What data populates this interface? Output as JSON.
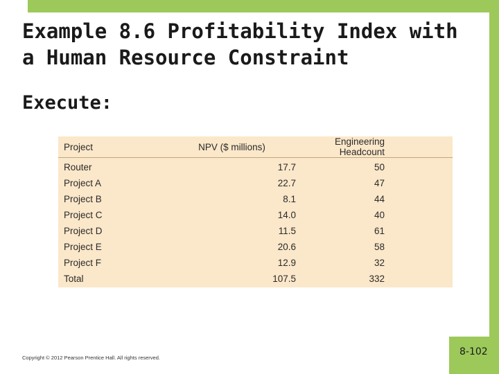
{
  "title": "Example 8.6 Profitability Index with a Human Resource Constraint",
  "subheading": "Execute:",
  "table": {
    "headers": {
      "project": "Project",
      "npv": "NPV ($ millions)",
      "headcount": "Engineering Headcount"
    },
    "rows": [
      {
        "project": "Router",
        "npv": "17.7",
        "headcount": "50"
      },
      {
        "project": "Project A",
        "npv": "22.7",
        "headcount": "47"
      },
      {
        "project": "Project B",
        "npv": "8.1",
        "headcount": "44"
      },
      {
        "project": "Project C",
        "npv": "14.0",
        "headcount": "40"
      },
      {
        "project": "Project D",
        "npv": "11.5",
        "headcount": "61"
      },
      {
        "project": "Project E",
        "npv": "20.6",
        "headcount": "58"
      },
      {
        "project": "Project F",
        "npv": "12.9",
        "headcount": "32"
      },
      {
        "project": "Total",
        "npv": "107.5",
        "headcount": "332"
      }
    ]
  },
  "footer": {
    "copyright": "Copyright © 2012 Pearson Prentice Hall. All rights reserved."
  },
  "page_number": "8-102",
  "colors": {
    "accent_green": "#9cc95a",
    "table_background": "#fbe7c9"
  }
}
